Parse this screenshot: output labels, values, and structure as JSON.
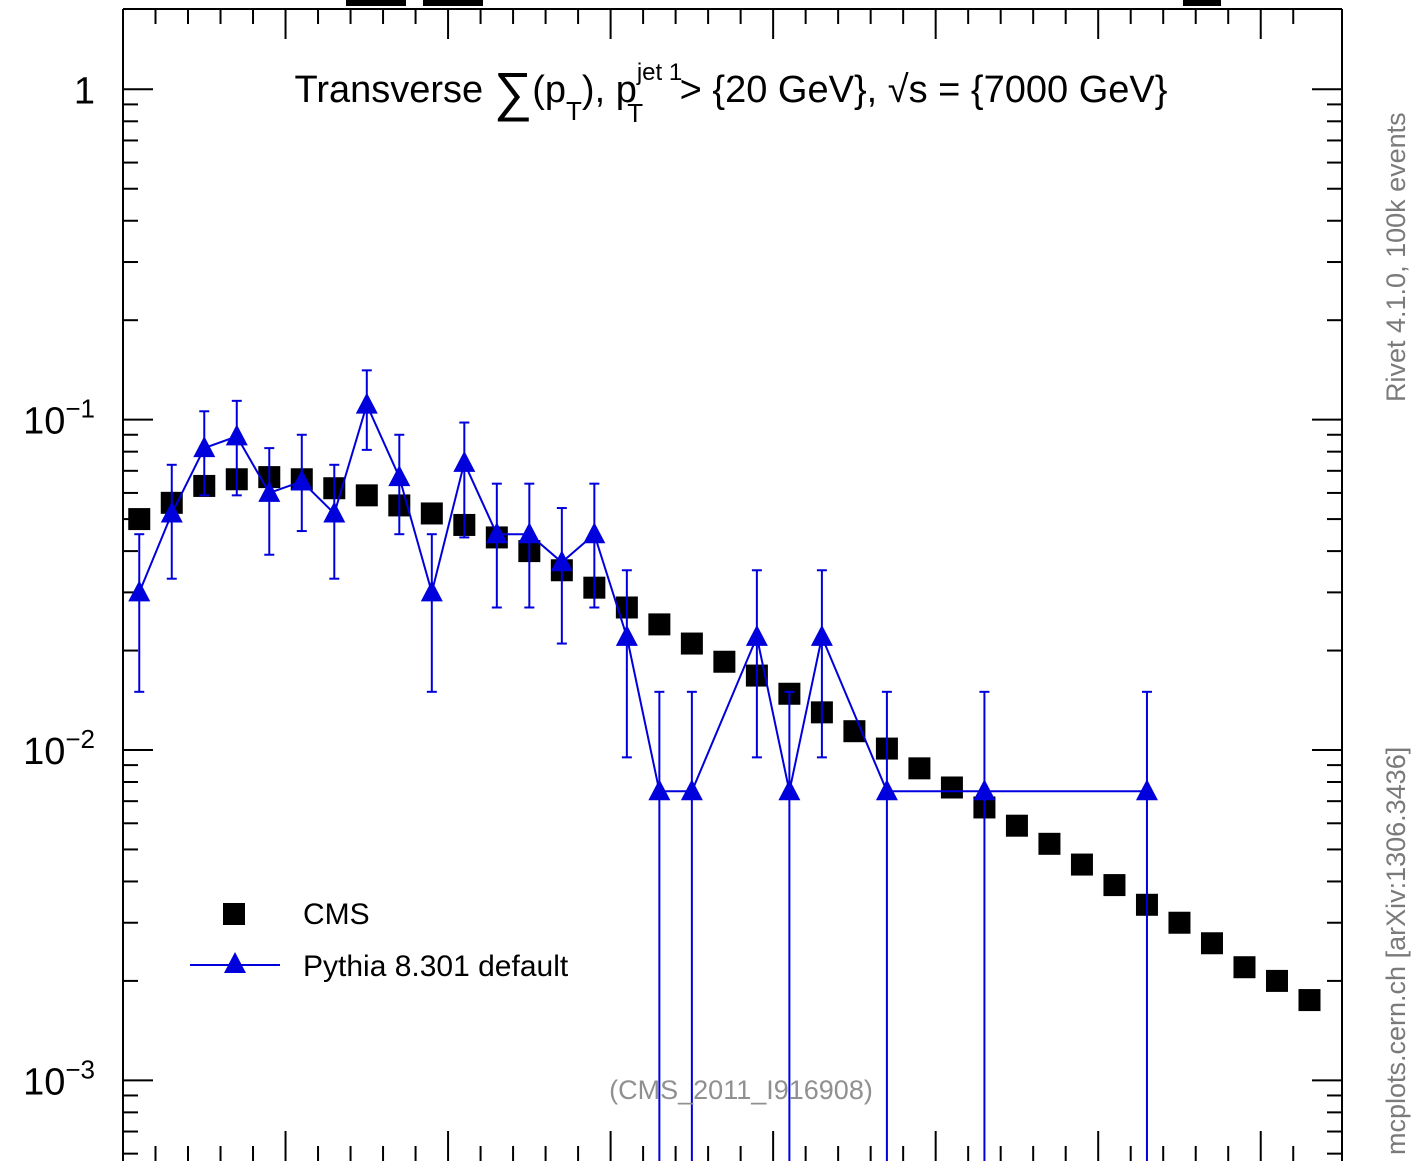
{
  "chart_data": {
    "type": "scatter",
    "title_prefix": "Transverse ",
    "title_sum_symbol": "∑",
    "title_pt_open": "(p",
    "title_pt_sub": "T",
    "title_pt_close": "), p",
    "title_jet_sup": "jet 1",
    "title_jet_sub": "T",
    "title_cut": " > {20 GeV}, ",
    "title_sqrt": "√s",
    "title_energy": " = {7000 GeV}",
    "annotation": "(CMS_2011_I916908)",
    "yscale": "log",
    "ylim": [
      0.00057,
      1.75
    ],
    "xlim": [
      0,
      37.5
    ],
    "y_tick_labels": [
      {
        "value": 1,
        "base": "1",
        "exp": ""
      },
      {
        "value": 0.1,
        "base": "10",
        "exp": "−1"
      },
      {
        "value": 0.01,
        "base": "10",
        "exp": "−2"
      },
      {
        "value": 0.001,
        "base": "10",
        "exp": "−3"
      }
    ],
    "legend": {
      "placement": "bottom-left",
      "entries": [
        "CMS",
        "Pythia 8.301 default"
      ]
    },
    "series": [
      {
        "name": "CMS",
        "color": "#000000",
        "marker": "square",
        "x": [
          0.5,
          1.5,
          2.5,
          3.5,
          4.5,
          5.5,
          6.5,
          7.5,
          8.5,
          9.5,
          10.5,
          11.5,
          12.5,
          13.5,
          14.5,
          15.5,
          16.5,
          17.5,
          18.5,
          19.5,
          20.5,
          21.5,
          22.5,
          23.5,
          24.5,
          25.5,
          26.5,
          27.5,
          28.5,
          29.5,
          30.5,
          31.5,
          32.5,
          33.5,
          34.5,
          35.5,
          36.5
        ],
        "y": [
          0.05,
          0.056,
          0.063,
          0.066,
          0.067,
          0.066,
          0.062,
          0.059,
          0.055,
          0.052,
          0.048,
          0.044,
          0.04,
          0.035,
          0.031,
          0.027,
          0.024,
          0.021,
          0.0185,
          0.0168,
          0.0148,
          0.013,
          0.0114,
          0.0101,
          0.0088,
          0.0077,
          0.0067,
          0.0059,
          0.0052,
          0.0045,
          0.0039,
          0.0034,
          0.003,
          0.0026,
          0.0022,
          0.002,
          0.00175
        ]
      },
      {
        "name": "Pythia 8.301 default",
        "color": "#0000dd",
        "marker": "triangle",
        "x": [
          0.5,
          1.5,
          2.5,
          3.5,
          4.5,
          5.5,
          6.5,
          7.5,
          8.5,
          9.5,
          10.5,
          11.5,
          12.5,
          13.5,
          14.5,
          15.5,
          16.5,
          17.5,
          19.5,
          20.5,
          21.5,
          23.5,
          26.5,
          31.5
        ],
        "y": [
          0.03,
          0.052,
          0.082,
          0.089,
          0.06,
          0.065,
          0.052,
          0.111,
          0.067,
          0.03,
          0.074,
          0.045,
          0.045,
          0.037,
          0.045,
          0.022,
          0.0075,
          0.0075,
          0.022,
          0.0075,
          0.022,
          0.0075,
          0.0075,
          0.0075
        ],
        "yerr_low": [
          0.015,
          0.019,
          0.023,
          0.03,
          0.021,
          0.019,
          0.019,
          0.03,
          0.022,
          0.015,
          0.03,
          0.018,
          0.018,
          0.016,
          0.018,
          0.0125,
          0.0075,
          0.0075,
          0.0125,
          0.0075,
          0.0125,
          0.0075,
          0.0075,
          0.0075
        ],
        "yerr_high": [
          0.015,
          0.021,
          0.024,
          0.025,
          0.022,
          0.025,
          0.021,
          0.03,
          0.023,
          0.015,
          0.024,
          0.019,
          0.019,
          0.017,
          0.019,
          0.013,
          0.0075,
          0.0075,
          0.013,
          0.0075,
          0.013,
          0.0075,
          0.0075,
          0.0075
        ]
      }
    ]
  },
  "side_labels": {
    "rivet": "Rivet 4.1.0,  100k events",
    "mcplots": "mcplots.cern.ch [arXiv:1306.3436]"
  }
}
